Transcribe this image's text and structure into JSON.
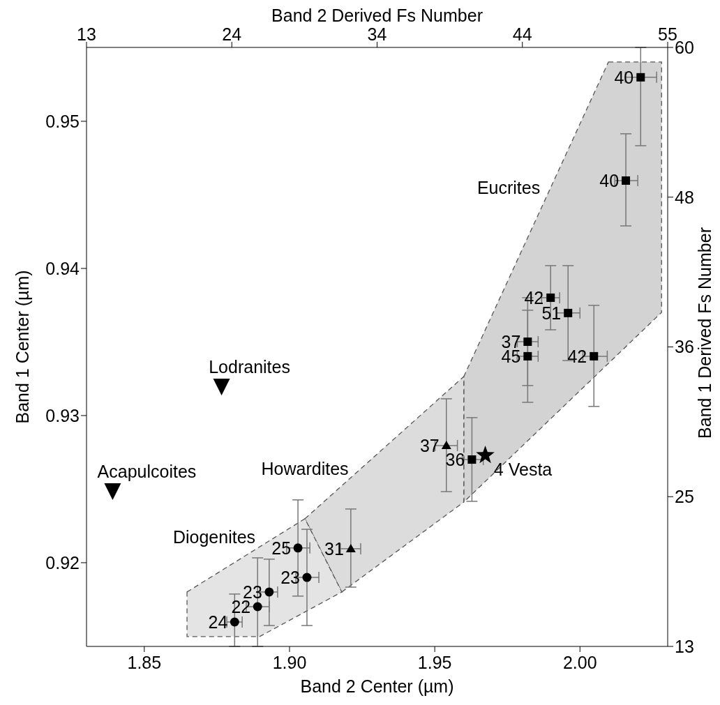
{
  "chart_data": {
    "type": "scatter",
    "xlabel": "Band 2 Center (µm)",
    "ylabel": "Band 1 Center (µm)",
    "x2label": "Band 2 Derived Fs Number",
    "y2label": "Band 1 Derived Fs Number",
    "xlim": [
      1.8301,
      2.0302
    ],
    "xticks": [
      {
        "value": 1.85,
        "label": "1.85"
      },
      {
        "value": 1.9,
        "label": "1.90"
      },
      {
        "value": 1.95,
        "label": "1.95"
      },
      {
        "value": 2.0,
        "label": "2.00"
      }
    ],
    "ylim": [
      0.91431,
      0.95502
    ],
    "yticks": [
      0.92,
      0.93,
      0.94,
      0.95
    ],
    "x2lim": [
      13,
      55
    ],
    "x2ticks": [
      13,
      {
        "value": 23.5,
        "label": "24"
      },
      34,
      {
        "value": 44.5,
        "label": "44"
      },
      55
    ],
    "y2lim": [
      13,
      60
    ],
    "y2ticks": [
      13,
      {
        "value": 24.75,
        "label": "25"
      },
      {
        "value": 36.5,
        "label": "36"
      },
      {
        "value": 48.25,
        "label": "48"
      },
      60
    ],
    "grid": false,
    "legend": false,
    "series": [
      {
        "type": "area",
        "name": "Eucrites",
        "color": "#d3d3d3",
        "line_style": "dashed",
        "x": [
          2.0098,
          2.0281,
          2.0281,
          1.96,
          1.96
        ],
        "values": [
          0.95403,
          0.95403,
          0.93701,
          0.92412,
          0.93265
        ]
      },
      {
        "type": "area",
        "name": "Howardites",
        "color": "#dcdcdc",
        "line_style": "dashed",
        "x": [
          1.9053,
          1.96,
          1.96,
          1.918
        ],
        "values": [
          0.92299,
          0.93265,
          0.92412,
          0.91801
        ]
      },
      {
        "type": "area",
        "name": "Diogenites",
        "color": "#e4e4e4",
        "line_style": "dashed",
        "x": [
          1.8647,
          1.9053,
          1.918,
          1.8897,
          1.8647
        ],
        "values": [
          0.91801,
          0.92299,
          0.91801,
          0.91498,
          0.91498
        ]
      },
      {
        "marker": "square",
        "color": "#000000",
        "x": [
          2.0209,
          2.0158,
          1.9899,
          1.9959,
          1.982,
          1.982,
          2.0048,
          1.9628
        ],
        "values": [
          0.95299,
          0.94597,
          0.93801,
          0.93697,
          0.93502,
          0.93403,
          0.93403,
          0.92701
        ],
        "errors": [
          [
            0.94834,
            0.95502
          ],
          [
            0.94289,
            0.94915
          ],
          [
            0.93583,
            0.94019
          ],
          [
            0.93374,
            0.94019
          ],
          [
            0.93204,
            0.93801
          ],
          [
            0.9309,
            0.93716
          ],
          [
            0.93062,
            0.93749
          ],
          [
            0.92417,
            0.92986
          ]
        ],
        "xerrors": [
          [
            2.0156,
            2.0264
          ],
          [
            2.012,
            2.0199
          ],
          [
            1.9868,
            1.993
          ],
          [
            1.9918,
            2.0
          ],
          [
            1.9784,
            1.9856
          ],
          [
            1.9784,
            1.9856
          ],
          [
            2.001,
            2.0094
          ],
          [
            1.9595,
            1.9667
          ]
        ]
      },
      {
        "marker": "triangle",
        "color": "#000000",
        "x": [
          1.954,
          1.9211
        ],
        "values": [
          0.92796,
          0.92095
        ],
        "errors": [
          [
            0.92483,
            0.93114
          ],
          [
            0.91834,
            0.92365
          ]
        ],
        "xerrors": [
          [
            1.9501,
            1.9578
          ],
          [
            1.9175,
            1.9245
          ]
        ]
      },
      {
        "marker": "circle",
        "color": "#000000",
        "x": [
          1.9029,
          1.906,
          1.893,
          1.889,
          1.8811
        ],
        "values": [
          0.921,
          0.919,
          0.91801,
          0.91701,
          0.91597
        ],
        "errors": [
          [
            0.91773,
            0.92427
          ],
          [
            0.91573,
            0.92227
          ],
          [
            0.91573,
            0.92024
          ],
          [
            0.91431,
            0.92033
          ],
          [
            0.91431,
            0.91787
          ]
        ],
        "xerrors": [
          [
            1.899,
            1.907
          ],
          [
            1.9022,
            1.9101
          ],
          [
            1.8899,
            1.8959
          ],
          [
            1.8851,
            1.893
          ],
          [
            1.8784,
            1.8837
          ]
        ]
      },
      {
        "name": "Acapulcoites",
        "marker": "triangle_down",
        "color": "#000000",
        "x": [
          1.8391
        ],
        "values": [
          0.92493
        ]
      },
      {
        "name": "Lodranites",
        "marker": "triangle_down",
        "color": "#000000",
        "x": [
          1.8766
        ],
        "values": [
          0.93204
        ]
      },
      {
        "name": "4 Vesta",
        "marker": "star",
        "color": "#000000",
        "x": [
          1.9674
        ],
        "values": [
          0.9273
        ]
      }
    ],
    "annotations": [
      {
        "text": "40",
        "x": 2.0209,
        "y": 0.95299
      },
      {
        "text": "40",
        "x": 2.0158,
        "y": 0.94597
      },
      {
        "text": "42",
        "x": 1.9899,
        "y": 0.93801
      },
      {
        "text": "51",
        "x": 1.9959,
        "y": 0.93697
      },
      {
        "text": "37",
        "x": 1.982,
        "y": 0.93502
      },
      {
        "text": "45",
        "x": 1.982,
        "y": 0.93403
      },
      {
        "text": "42",
        "x": 2.0048,
        "y": 0.93403
      },
      {
        "text": "36",
        "x": 1.9628,
        "y": 0.92701
      },
      {
        "text": "37",
        "x": 1.954,
        "y": 0.92796
      },
      {
        "text": "31",
        "x": 1.9211,
        "y": 0.92095
      },
      {
        "text": "25",
        "x": 1.9029,
        "y": 0.921
      },
      {
        "text": "23",
        "x": 1.906,
        "y": 0.919
      },
      {
        "text": "23",
        "x": 1.893,
        "y": 0.91801
      },
      {
        "text": "22",
        "x": 1.889,
        "y": 0.91701
      },
      {
        "text": "24",
        "x": 1.8811,
        "y": 0.91597
      }
    ]
  }
}
